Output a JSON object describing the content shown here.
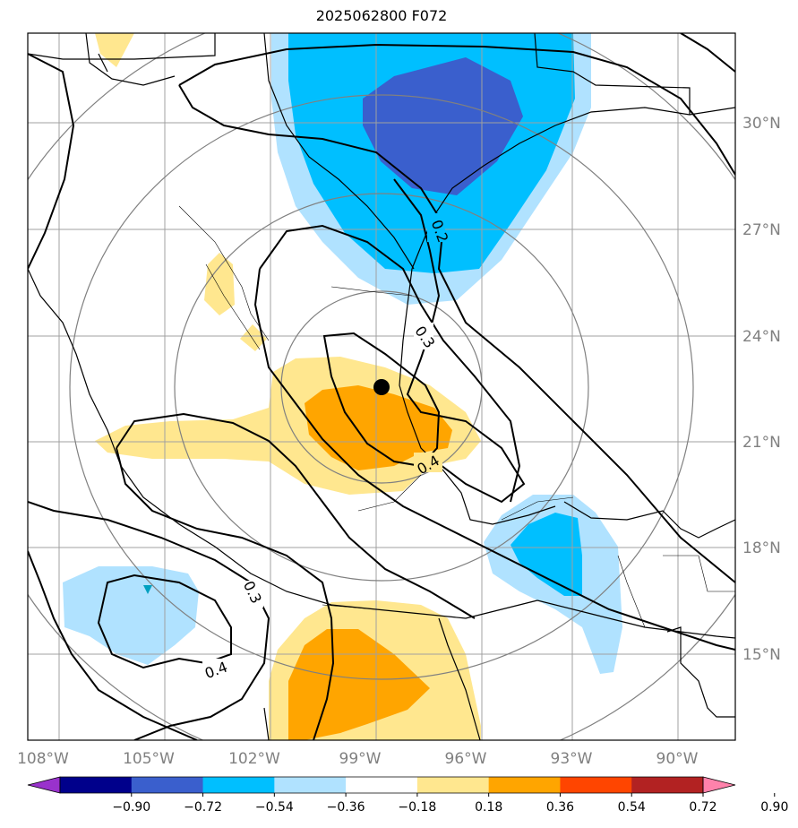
{
  "title": "2025062800 F072",
  "lon_labels": [
    "108°W",
    "105°W",
    "102°W",
    "99°W",
    "96°W",
    "93°W",
    "90°W"
  ],
  "lat_labels": [
    "30°N",
    "27°N",
    "24°N",
    "21°N",
    "18°N",
    "15°N"
  ],
  "contour_labels": [
    "0.2",
    "0.3",
    "0.4",
    "0.3",
    "0.4"
  ],
  "colorbar": {
    "ticks": [
      "−0.90",
      "−0.72",
      "−0.54",
      "−0.36",
      "−0.18",
      "0.18",
      "0.36",
      "0.54",
      "0.72",
      "0.90"
    ],
    "colors": [
      "#9932cc",
      "#00008b",
      "#3a5fcd",
      "#00bfff",
      "#b0e2ff",
      "#ffffff",
      "#ffe78f",
      "#ffa500",
      "#ff4500",
      "#b22222",
      "#ff82ab"
    ]
  },
  "colors": {
    "grid": "#a0a0a0",
    "range_rings": "#808080",
    "axis_label": "#808080",
    "contour": "#000000"
  },
  "center_marker": "black-dot"
}
